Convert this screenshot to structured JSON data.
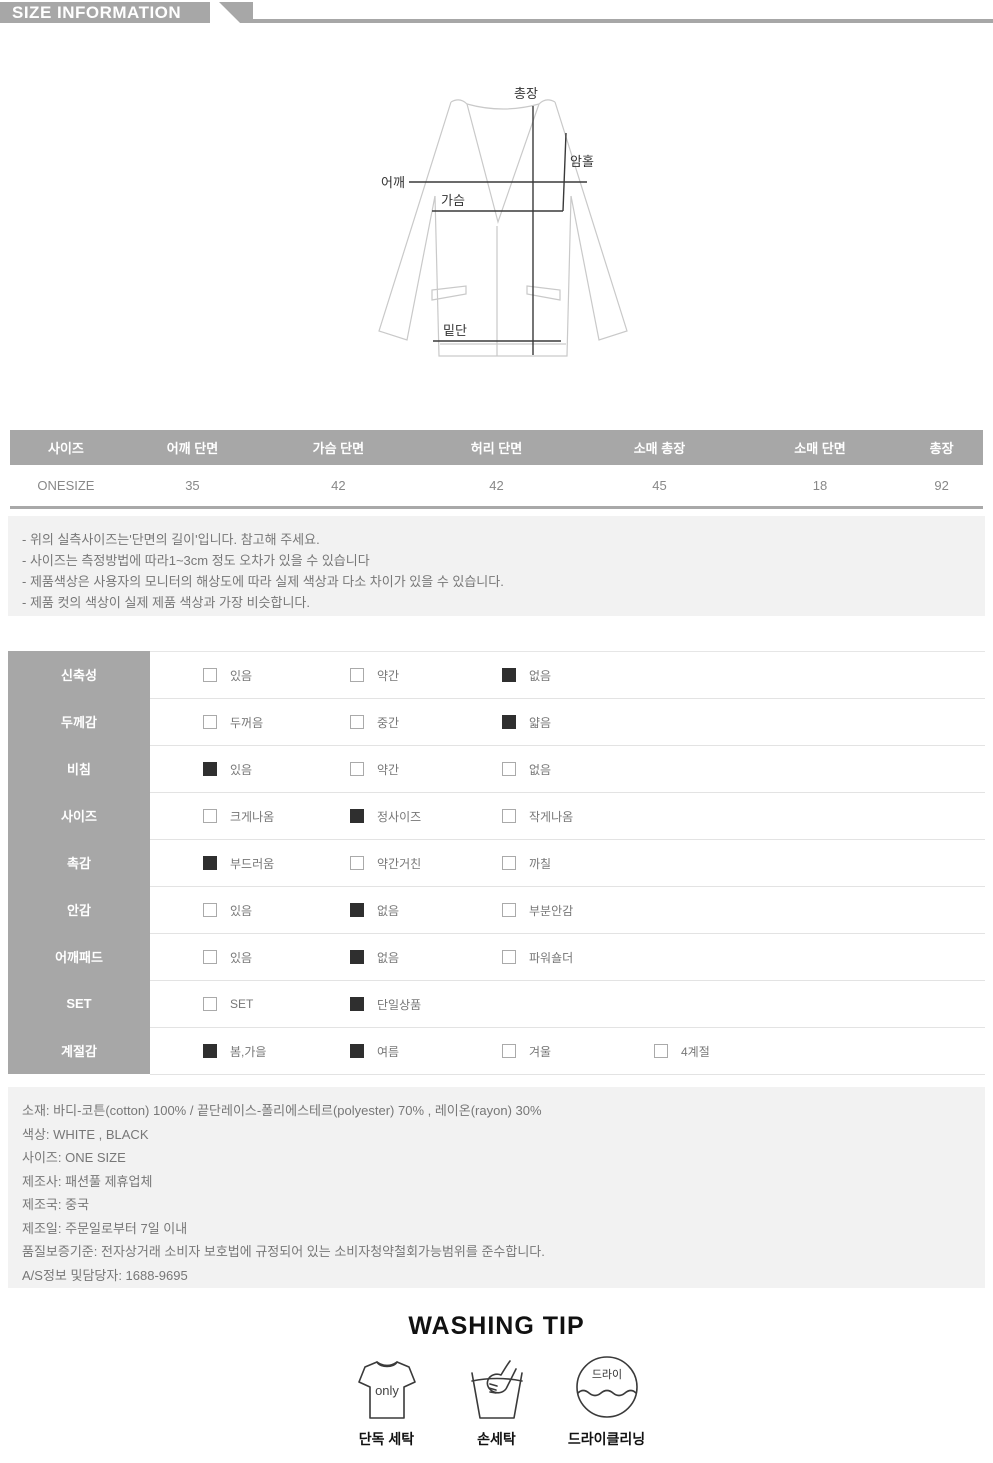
{
  "colors": {
    "bar_gray": "#a7a7a7",
    "box_gray": "#f2f2f2",
    "text_gray": "#777777",
    "checked_box": "#2f2f2f",
    "row_border": "#e3e3e3",
    "diagram_outline": "#c9c9c9"
  },
  "header": {
    "title": "SIZE INFORMATION"
  },
  "diagram": {
    "labels": {
      "total_length": "총장",
      "armhole": "암홀",
      "shoulder": "어깨",
      "chest": "가슴",
      "hem": "밑단"
    }
  },
  "size_table": {
    "columns": [
      "사이즈",
      "어깨 단면",
      "가슴 단면",
      "허리 단면",
      "소매 총장",
      "소매 단면",
      "총장"
    ],
    "rows": [
      [
        "ONESIZE",
        "35",
        "42",
        "42",
        "45",
        "18",
        "92"
      ]
    ]
  },
  "notes": [
    "- 위의 실측사이즈는'단면의 길이'입니다. 참고해 주세요.",
    "- 사이즈는 측정방법에 따라1~3cm 정도 오차가 있을 수 있습니다",
    "- 제품색상은 사용자의 모니터의 해상도에 따라 실제 색상과 다소 차이가 있을 수 있습니다.",
    "- 제품 컷의 색상이 실제 제품 색상과 가장 비슷합니다."
  ],
  "attributes": {
    "rows": [
      {
        "label": "신축성",
        "options": [
          {
            "label": "있음",
            "checked": false
          },
          {
            "label": "약간",
            "checked": false
          },
          {
            "label": "없음",
            "checked": true
          }
        ]
      },
      {
        "label": "두께감",
        "options": [
          {
            "label": "두꺼음",
            "checked": false
          },
          {
            "label": "중간",
            "checked": false
          },
          {
            "label": "얇음",
            "checked": true
          }
        ]
      },
      {
        "label": "비침",
        "options": [
          {
            "label": "있음",
            "checked": true
          },
          {
            "label": "약간",
            "checked": false
          },
          {
            "label": "없음",
            "checked": false
          }
        ]
      },
      {
        "label": "사이즈",
        "options": [
          {
            "label": "크게나옴",
            "checked": false
          },
          {
            "label": "정사이즈",
            "checked": true
          },
          {
            "label": "작게나옴",
            "checked": false
          }
        ]
      },
      {
        "label": "촉감",
        "options": [
          {
            "label": "부드러움",
            "checked": true
          },
          {
            "label": "약간거친",
            "checked": false
          },
          {
            "label": "까칠",
            "checked": false
          }
        ]
      },
      {
        "label": "안감",
        "options": [
          {
            "label": "있음",
            "checked": false
          },
          {
            "label": "없음",
            "checked": true
          },
          {
            "label": "부분안감",
            "checked": false
          }
        ]
      },
      {
        "label": "어깨패드",
        "options": [
          {
            "label": "있음",
            "checked": false
          },
          {
            "label": "없음",
            "checked": true
          },
          {
            "label": "파워숄더",
            "checked": false
          }
        ]
      },
      {
        "label": "SET",
        "options": [
          {
            "label": "SET",
            "checked": false
          },
          {
            "label": "단일상품",
            "checked": true
          }
        ]
      },
      {
        "label": "계절감",
        "options": [
          {
            "label": "봄,가을",
            "checked": true
          },
          {
            "label": "여름",
            "checked": true
          },
          {
            "label": "겨울",
            "checked": false
          },
          {
            "label": "4계절",
            "checked": false
          }
        ]
      }
    ]
  },
  "product_info": [
    "소재: 바디-코튼(cotton) 100% / 끝단레이스-폴리에스테르(polyester) 70% , 레이온(rayon) 30%",
    "색상: WHITE , BLACK",
    "사이즈: ONE SIZE",
    "제조사: 패션풀 제휴업체",
    "제조국: 중국",
    "제조일: 주문일로부터 7일 이내",
    "품질보증기준: 전자상거래 소비자 보호법에 규정되어 있는 소비자청약철회가능범위를 준수합니다.",
    "A/S정보 및담당자: 1688-9695"
  ],
  "washing": {
    "title": "WASHING TIP",
    "items": [
      {
        "icon": "tshirt-only-icon",
        "icon_text": "only",
        "caption": "단독 세탁"
      },
      {
        "icon": "hand-wash-icon",
        "icon_text": "",
        "caption": "손세탁"
      },
      {
        "icon": "dry-clean-icon",
        "icon_text": "드라이",
        "caption": "드라이클리닝"
      }
    ]
  }
}
